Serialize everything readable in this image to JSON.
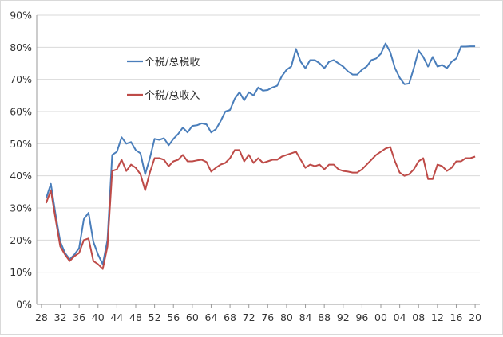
{
  "chart_data": {
    "type": "line",
    "title": "",
    "xlabel": "",
    "ylabel": "",
    "ylim": [
      0,
      90
    ],
    "y_ticks": [
      "0%",
      "10%",
      "20%",
      "30%",
      "40%",
      "50%",
      "60%",
      "70%",
      "80%",
      "90%"
    ],
    "x_ticks": [
      "28",
      "32",
      "36",
      "40",
      "44",
      "48",
      "52",
      "56",
      "60",
      "64",
      "68",
      "72",
      "76",
      "80",
      "84",
      "88",
      "92",
      "96",
      "00",
      "04",
      "08",
      "12",
      "16",
      "20"
    ],
    "grid": "horizontal",
    "legend": "upper-left inside",
    "x": [
      1929,
      1930,
      1931,
      1932,
      1933,
      1934,
      1935,
      1936,
      1937,
      1938,
      1939,
      1940,
      1941,
      1942,
      1943,
      1944,
      1945,
      1946,
      1947,
      1948,
      1949,
      1950,
      1951,
      1952,
      1953,
      1954,
      1955,
      1956,
      1957,
      1958,
      1959,
      1960,
      1961,
      1962,
      1963,
      1964,
      1965,
      1966,
      1967,
      1968,
      1969,
      1970,
      1971,
      1972,
      1973,
      1974,
      1975,
      1976,
      1977,
      1978,
      1979,
      1980,
      1981,
      1982,
      1983,
      1984,
      1985,
      1986,
      1987,
      1988,
      1989,
      1990,
      1991,
      1992,
      1993,
      1994,
      1995,
      1996,
      1997,
      1998,
      1999,
      2000,
      2001,
      2002,
      2003,
      2004,
      2005,
      2006,
      2007,
      2008,
      2009,
      2010,
      2011,
      2012,
      2013,
      2014,
      2015,
      2016,
      2017,
      2018,
      2019,
      2020
    ],
    "series": [
      {
        "name": "个税/总税收",
        "color": "#4a7ebb",
        "values": [
          33,
          37.5,
          28,
          19.5,
          16,
          14,
          15.5,
          17.5,
          26.5,
          28.5,
          19.5,
          15.5,
          12.5,
          20,
          46.5,
          47.5,
          52,
          50,
          50.5,
          48,
          47,
          40.5,
          45.5,
          51.5,
          51.2,
          51.7,
          49.5,
          51.5,
          53,
          55,
          53.5,
          55.5,
          55.7,
          56.3,
          56,
          53.5,
          54.5,
          57,
          60,
          60.5,
          64,
          66,
          63.5,
          66,
          65,
          67.5,
          66.5,
          66.7,
          67.5,
          68,
          71,
          73,
          74,
          79.5,
          75.5,
          73.5,
          76,
          76,
          75,
          73.5,
          75.5,
          76,
          75,
          74,
          72.5,
          71.5,
          71.5,
          73,
          74,
          76,
          76.5,
          78,
          81.2,
          78.5,
          73.5,
          70.5,
          68.5,
          68.7,
          73.5,
          79,
          77,
          74,
          77,
          74,
          74.5,
          73.5,
          75.5,
          76.5,
          80.2,
          80.2,
          80.3,
          80.3
        ]
      },
      {
        "name": "个税/总收入",
        "color": "#be4b48",
        "values": [
          31.5,
          35.5,
          26.5,
          18,
          15.5,
          13.5,
          15,
          16,
          20,
          20.5,
          13.5,
          12.5,
          11,
          18,
          41.5,
          42,
          45,
          41.5,
          43.5,
          42.5,
          40.5,
          35.5,
          41,
          45.5,
          45.5,
          45,
          43,
          44.5,
          45,
          46.5,
          44.5,
          44.5,
          44.8,
          45,
          44.3,
          41.3,
          42.5,
          43.5,
          44,
          45.5,
          48,
          48,
          44.5,
          46.5,
          44,
          45.5,
          44,
          44.5,
          45,
          45,
          46,
          46.5,
          47,
          47.5,
          45,
          42.5,
          43.5,
          43,
          43.5,
          42,
          43.5,
          43.5,
          42,
          41.5,
          41.3,
          41,
          41,
          42,
          43.5,
          45,
          46.5,
          47.5,
          48.5,
          49,
          44.5,
          41,
          40,
          40.5,
          42,
          44.5,
          45.5,
          39,
          39,
          43.5,
          43,
          41.5,
          42.5,
          44.5,
          44.5,
          45.5,
          45.5,
          46
        ]
      }
    ]
  }
}
